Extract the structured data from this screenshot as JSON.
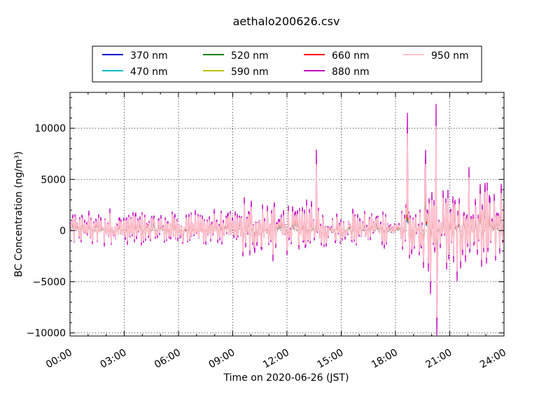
{
  "chart_data": {
    "type": "line",
    "title": "aethalo200626.csv",
    "xlabel": "Time on 2020-06-26 (JST)",
    "ylabel": "BC Concentration (ng/m³)",
    "xlim": [
      "2020-06-26 00:00",
      "2020-06-27 00:00"
    ],
    "ylim": [
      -10300,
      13500
    ],
    "x_ticks": [
      "00:00",
      "03:00",
      "06:00",
      "09:00",
      "12:00",
      "15:00",
      "18:00",
      "21:00",
      "24:00"
    ],
    "y_ticks": [
      -10000,
      -5000,
      0,
      5000,
      10000
    ],
    "grid": true,
    "legend_placement": "top, above plot",
    "series": [
      {
        "name": "370 nm",
        "color": "#0000cc",
        "amplitude_envelope": "similar to 950 nm"
      },
      {
        "name": "470 nm",
        "color": "#00bfbf",
        "amplitude_envelope": "similar to 950 nm"
      },
      {
        "name": "520 nm",
        "color": "#008000",
        "amplitude_envelope": "similar to 950 nm"
      },
      {
        "name": "590 nm",
        "color": "#bfbf00",
        "amplitude_envelope": "similar to 950 nm"
      },
      {
        "name": "660 nm",
        "color": "#ff0000",
        "amplitude_envelope": "similar to 950 nm"
      },
      {
        "name": "880 nm",
        "color": "#bf00bf",
        "peaks": [
          {
            "x": "20:15",
            "y": 12500
          },
          {
            "x": "20:15",
            "y": -9100
          }
        ]
      },
      {
        "name": "950 nm",
        "color": "#ffc0cb",
        "peaks": [
          {
            "x": "18:40",
            "y": 9500
          },
          {
            "x": "20:15",
            "y": 10200
          }
        ]
      }
    ]
  }
}
